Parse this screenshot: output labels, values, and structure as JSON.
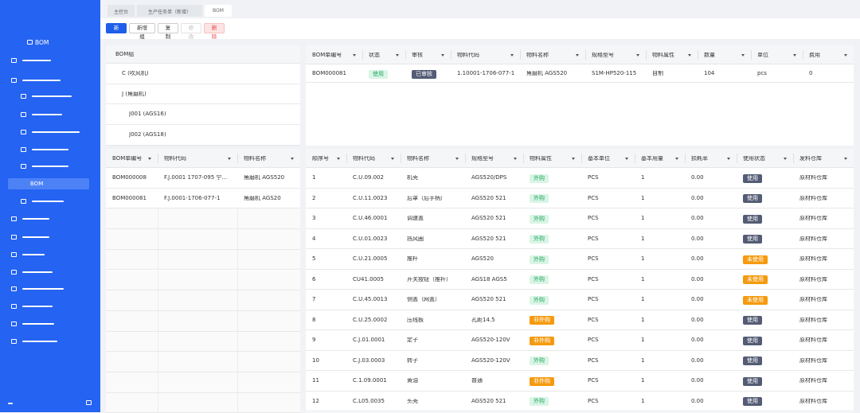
{
  "sidebar": {
    "title": "BOM",
    "active_item": "BOM"
  },
  "tabs": [
    "主控台",
    "生产任务单（新增）",
    "BOM"
  ],
  "toolbar": [
    "新增",
    "新增组",
    "复制",
    "修改",
    "删除"
  ],
  "tree": {
    "title": "BOM组",
    "nodes": [
      "C (吹风机)",
      "J (角磨机)",
      "J001 (AGS16)",
      "J002 (AGS18)"
    ]
  },
  "bom_table": {
    "columns": [
      "BOM单编号",
      "状态",
      "审核",
      "物料代码",
      "物料名称",
      "规格型号",
      "物料属性",
      "数量",
      "单位",
      "费用"
    ],
    "rows": [
      [
        "BOM000081",
        "使用",
        "已审核",
        "1.10001-1706-077-1",
        "角磨机 AGS520",
        "S1M-HP520-115",
        "自制",
        "104",
        "pcs",
        "0"
      ]
    ]
  },
  "list_table": {
    "columns": [
      "BOM单编号",
      "物料代码",
      "物料名称"
    ],
    "rows": [
      [
        "BOM000008",
        "F.J.0001  1707-095  宁...",
        "角磨机  AGS520"
      ],
      [
        "BOM000081",
        "F.J.0001-1706-077-1",
        "角磨机  AGS20"
      ]
    ]
  },
  "detail_table": {
    "columns": [
      "顺序号",
      "物料代码",
      "物料名称",
      "规格型号",
      "物料属性",
      "基本单位",
      "基本用量",
      "损耗率",
      "使用状态",
      "发料仓库"
    ],
    "rows": [
      [
        "1",
        "C.U.09.002",
        "机壳",
        "AGS520/DPS",
        "外购",
        "PCS",
        "1",
        "0.00",
        "使用",
        "原材料仓库"
      ],
      [
        "2",
        "C.U.11.0023",
        "后罩（后手柄）",
        "AGS520 521",
        "外购",
        "PCS",
        "1",
        "0.00",
        "使用",
        "原材料仓库"
      ],
      [
        "3",
        "C.U.46.0001",
        "调速盖",
        "AGS520 521",
        "外购",
        "PCS",
        "1",
        "0.00",
        "使用",
        "原材料仓库"
      ],
      [
        "4",
        "C.U.01.0023",
        "挡风圈",
        "AGS520 521",
        "外购",
        "PCS",
        "1",
        "0.00",
        "使用",
        "原材料仓库"
      ],
      [
        "5",
        "C.U.21.0005",
        "推杆",
        "AGS520",
        "外购",
        "PCS",
        "1",
        "0.00",
        "未使用",
        "原材料仓库"
      ],
      [
        "6",
        "CU41.0005",
        "开关按钮（推杆）",
        "AGS18 AGS5",
        "外购",
        "PCS",
        "1",
        "0.00",
        "未使用",
        "原材料仓库"
      ],
      [
        "7",
        "C.U.45.0013",
        "侧盖（网盖）",
        "AGS520 521",
        "外购",
        "PCS",
        "1",
        "0.00",
        "未使用",
        "原材料仓库"
      ],
      [
        "8",
        "C.U.25.0002",
        "压线板",
        "孔距14.5",
        "非外购",
        "PCS",
        "1",
        "0.00",
        "使用",
        "原材料仓库"
      ],
      [
        "9",
        "C.J.01.0001",
        "定子",
        "AGS520-120V",
        "非外购",
        "PCS",
        "1",
        "0.00",
        "使用",
        "原材料仓库"
      ],
      [
        "10",
        "C.J.03.0003",
        "转子",
        "AGS520-120V",
        "外购",
        "PCS",
        "1",
        "0.00",
        "使用",
        "原材料仓库"
      ],
      [
        "11",
        "C.1.09.0001",
        "黄油",
        "普通",
        "非外购",
        "PCS",
        "1",
        "0.00",
        "使用",
        "原材料仓库"
      ],
      [
        "12",
        "C.L05.0035",
        "头壳",
        "AGS520 521",
        "外购",
        "PCS",
        "1",
        "0.00",
        "使用",
        "原材料仓库"
      ]
    ]
  }
}
